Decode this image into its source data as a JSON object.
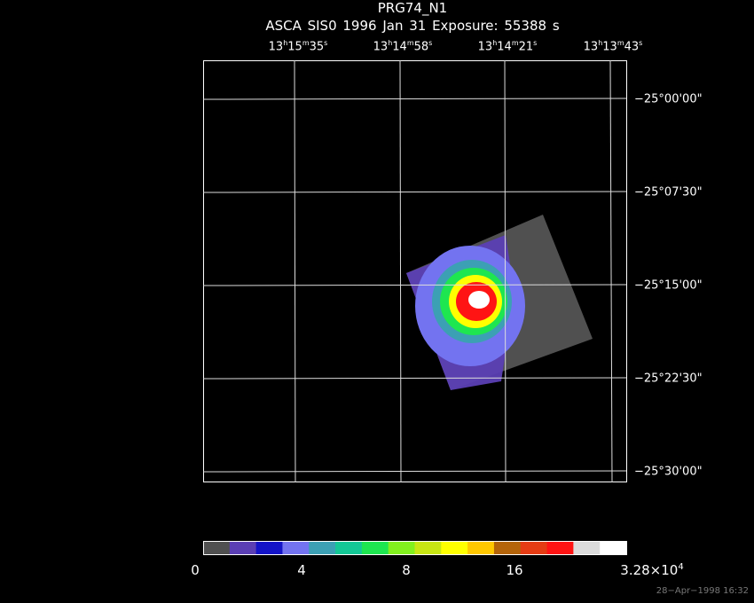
{
  "header": {
    "object": "PRG74_N1",
    "observation": "ASCA SIS0   1996 Jan 31    Exposure: 55388 s"
  },
  "ra_labels": [
    {
      "h": "13",
      "m": "15",
      "s": "35"
    },
    {
      "h": "13",
      "m": "14",
      "s": "58"
    },
    {
      "h": "13",
      "m": "14",
      "s": "21"
    },
    {
      "h": "13",
      "m": "13",
      "s": "43"
    }
  ],
  "dec_labels": [
    "−25°00'00\"",
    "−25°07'30\"",
    "−25°15'00\"",
    "−25°22'30\"",
    "−25°30'00\""
  ],
  "colorbar": {
    "colors": [
      "#505050",
      "#5b3fb4",
      "#1414c8",
      "#7373f0",
      "#3ca0b4",
      "#14c896",
      "#1ee650",
      "#82f01e",
      "#c8e614",
      "#ffff00",
      "#ffc800",
      "#b4640a",
      "#e63c14",
      "#ff1414",
      "#dcdcdc",
      "#ffffff"
    ],
    "labels": [
      "0",
      "4",
      "8",
      "16"
    ],
    "max_mantissa": "3.28×10",
    "max_exponent": "4"
  },
  "timestamp": "28−Apr−1998 16:32"
}
